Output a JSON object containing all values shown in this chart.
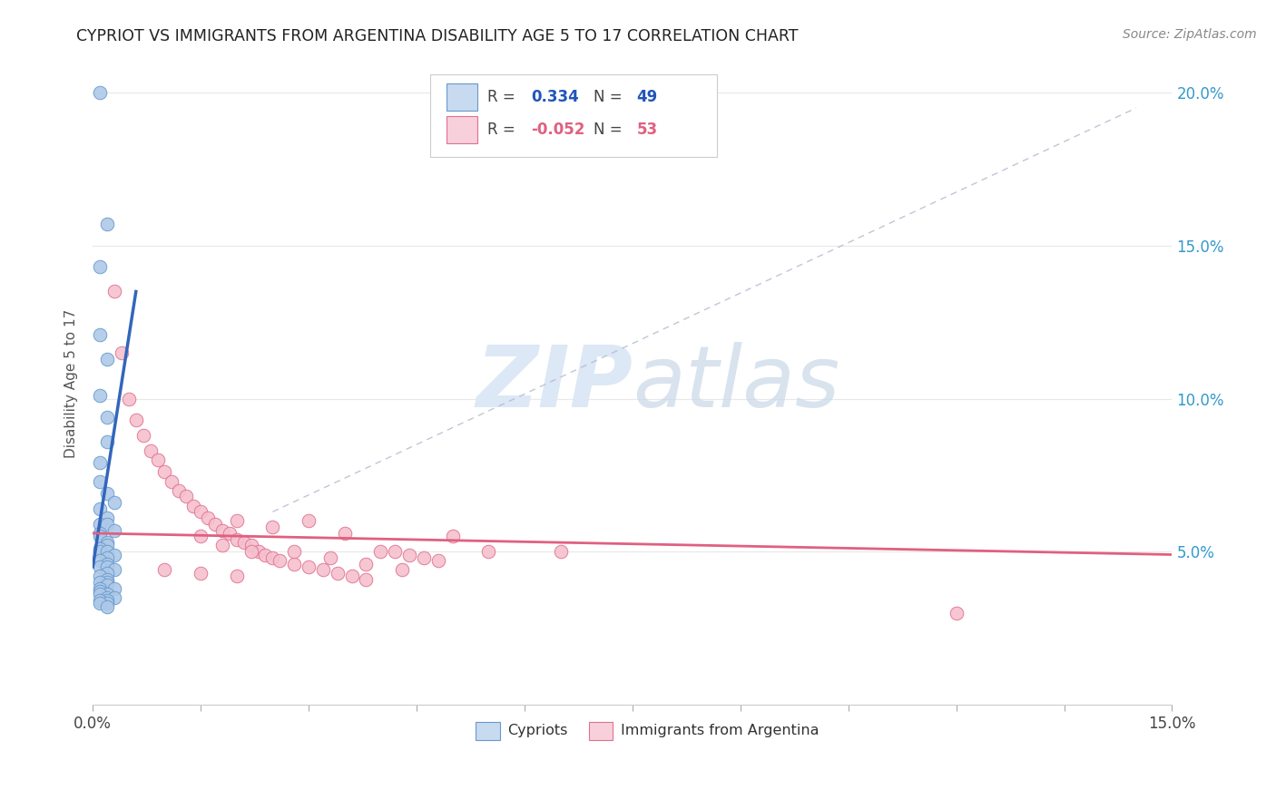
{
  "title": "CYPRIOT VS IMMIGRANTS FROM ARGENTINA DISABILITY AGE 5 TO 17 CORRELATION CHART",
  "source": "Source: ZipAtlas.com",
  "ylabel": "Disability Age 5 to 17",
  "xlim": [
    0,
    0.15
  ],
  "ylim": [
    0,
    0.21
  ],
  "legend_blue_r": "0.334",
  "legend_blue_n": "49",
  "legend_pink_r": "-0.052",
  "legend_pink_n": "53",
  "blue_scatter_color": "#aec9e8",
  "blue_edge_color": "#6699cc",
  "pink_scatter_color": "#f5c0ce",
  "pink_edge_color": "#e07090",
  "blue_line_color": "#3366bb",
  "pink_line_color": "#e06080",
  "diag_line_color": "#b0b8cc",
  "watermark_color": "#dce8f5",
  "background_color": "#ffffff",
  "grid_color": "#e8e8e8",
  "blue_scatter_x": [
    0.001,
    0.002,
    0.001,
    0.001,
    0.002,
    0.001,
    0.002,
    0.002,
    0.001,
    0.001,
    0.002,
    0.003,
    0.001,
    0.002,
    0.001,
    0.002,
    0.003,
    0.001,
    0.001,
    0.002,
    0.002,
    0.001,
    0.001,
    0.002,
    0.003,
    0.002,
    0.001,
    0.002,
    0.001,
    0.002,
    0.003,
    0.002,
    0.001,
    0.002,
    0.002,
    0.001,
    0.002,
    0.003,
    0.001,
    0.001,
    0.002,
    0.001,
    0.002,
    0.003,
    0.002,
    0.001,
    0.002,
    0.001,
    0.002
  ],
  "blue_scatter_y": [
    0.2,
    0.157,
    0.143,
    0.121,
    0.113,
    0.101,
    0.094,
    0.086,
    0.079,
    0.073,
    0.069,
    0.066,
    0.064,
    0.061,
    0.059,
    0.059,
    0.057,
    0.056,
    0.055,
    0.053,
    0.052,
    0.051,
    0.05,
    0.05,
    0.049,
    0.048,
    0.047,
    0.046,
    0.045,
    0.045,
    0.044,
    0.043,
    0.042,
    0.041,
    0.04,
    0.04,
    0.039,
    0.038,
    0.038,
    0.037,
    0.036,
    0.036,
    0.035,
    0.035,
    0.034,
    0.034,
    0.033,
    0.033,
    0.032
  ],
  "pink_scatter_x": [
    0.003,
    0.004,
    0.005,
    0.006,
    0.007,
    0.008,
    0.009,
    0.01,
    0.011,
    0.012,
    0.013,
    0.014,
    0.015,
    0.016,
    0.017,
    0.018,
    0.019,
    0.02,
    0.021,
    0.022,
    0.023,
    0.024,
    0.025,
    0.026,
    0.028,
    0.03,
    0.032,
    0.034,
    0.036,
    0.038,
    0.04,
    0.042,
    0.044,
    0.046,
    0.048,
    0.05,
    0.03,
    0.025,
    0.035,
    0.02,
    0.015,
    0.018,
    0.022,
    0.028,
    0.033,
    0.038,
    0.043,
    0.055,
    0.065,
    0.12,
    0.01,
    0.015,
    0.02
  ],
  "pink_scatter_y": [
    0.135,
    0.115,
    0.1,
    0.093,
    0.088,
    0.083,
    0.08,
    0.076,
    0.073,
    0.07,
    0.068,
    0.065,
    0.063,
    0.061,
    0.059,
    0.057,
    0.056,
    0.054,
    0.053,
    0.052,
    0.05,
    0.049,
    0.048,
    0.047,
    0.046,
    0.045,
    0.044,
    0.043,
    0.042,
    0.041,
    0.05,
    0.05,
    0.049,
    0.048,
    0.047,
    0.055,
    0.06,
    0.058,
    0.056,
    0.06,
    0.055,
    0.052,
    0.05,
    0.05,
    0.048,
    0.046,
    0.044,
    0.05,
    0.05,
    0.03,
    0.044,
    0.043,
    0.042
  ],
  "blue_line_x": [
    0.0,
    0.006
  ],
  "blue_line_y": [
    0.045,
    0.135
  ],
  "pink_line_x": [
    0.0,
    0.15
  ],
  "pink_line_y": [
    0.056,
    0.049
  ],
  "diag_line_x": [
    0.025,
    0.145
  ],
  "diag_line_y": [
    0.063,
    0.195
  ]
}
